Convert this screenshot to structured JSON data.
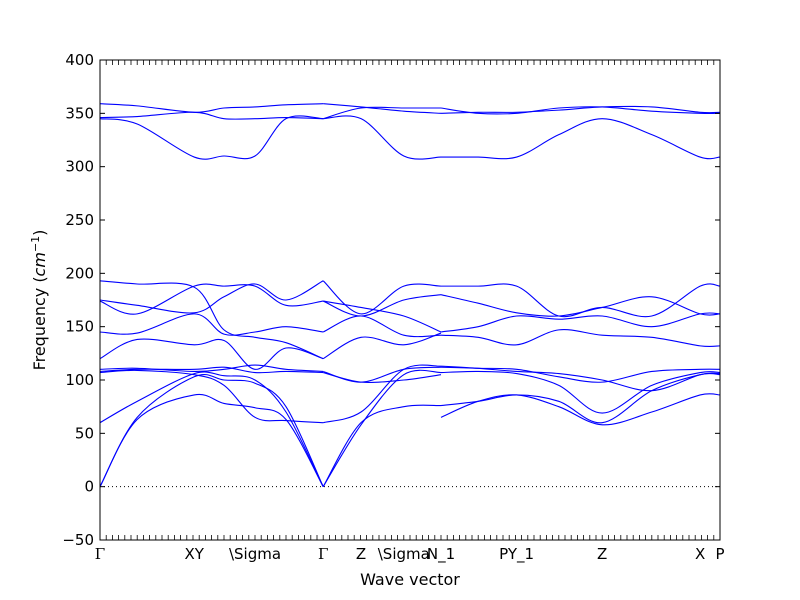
{
  "chart_data": {
    "type": "line",
    "xlabel": "Wave vector",
    "ylabel": "Frequency (",
    "ylabel_unit": "cm",
    "ylabel_exp": "−1",
    "ylabel_close": ")",
    "ylim": [
      -50,
      400
    ],
    "yticks": [
      -50,
      0,
      50,
      100,
      150,
      200,
      250,
      300,
      350,
      400
    ],
    "xlim": [
      0,
      1
    ],
    "kpoints": [
      {
        "label": "Γ",
        "x": 0.0,
        "serif": true
      },
      {
        "label": "XY",
        "x": 0.152
      },
      {
        "label": "\\Sigma",
        "x": 0.25
      },
      {
        "label": "Γ",
        "x": 0.36,
        "serif": true
      },
      {
        "label": "Z",
        "x": 0.421
      },
      {
        "label": "\\Sigma",
        "x": 0.49
      },
      {
        "label": "N_1",
        "x": 0.55
      },
      {
        "label": "PY_1",
        "x": 0.672
      },
      {
        "label": "Z",
        "x": 0.81
      },
      {
        "label": "X",
        "x": 0.968
      },
      {
        "label": "P",
        "x": 1.0
      }
    ],
    "zero_line": true,
    "series_color": "#0000ff",
    "series": [
      {
        "x": [
          0,
          0.06,
          0.152,
          0.2,
          0.25,
          0.3,
          0.36
        ],
        "y": [
          0,
          63,
          86,
          78,
          74,
          63,
          0
        ]
      },
      {
        "x": [
          0,
          0.06,
          0.152,
          0.2,
          0.25,
          0.3,
          0.36
        ],
        "y": [
          0,
          65,
          103,
          100,
          97,
          75,
          0
        ]
      },
      {
        "x": [
          0,
          0.06,
          0.152,
          0.2,
          0.25,
          0.3,
          0.36
        ],
        "y": [
          60,
          80,
          106,
          104,
          100,
          70,
          0
        ]
      },
      {
        "x": [
          0,
          0.06,
          0.152,
          0.2,
          0.25,
          0.3,
          0.36
        ],
        "y": [
          107,
          109,
          105,
          95,
          65,
          62,
          60
        ]
      },
      {
        "x": [
          0,
          0.06,
          0.152,
          0.2,
          0.25,
          0.3,
          0.36
        ],
        "y": [
          108,
          110,
          110,
          112,
          107,
          108,
          107
        ]
      },
      {
        "x": [
          0,
          0.06,
          0.152,
          0.2,
          0.25,
          0.3,
          0.36
        ],
        "y": [
          110,
          111,
          108,
          110,
          114,
          110,
          108
        ]
      },
      {
        "x": [
          0,
          0.06,
          0.152,
          0.2,
          0.25,
          0.3,
          0.36
        ],
        "y": [
          120,
          138,
          133,
          137,
          110,
          130,
          120
        ]
      },
      {
        "x": [
          0,
          0.06,
          0.152,
          0.2,
          0.25,
          0.3,
          0.36
        ],
        "y": [
          145,
          144,
          162,
          143,
          145,
          150,
          145
        ]
      },
      {
        "x": [
          0,
          0.06,
          0.152,
          0.2,
          0.25,
          0.3,
          0.36
        ],
        "y": [
          174,
          162,
          188,
          188,
          188,
          170,
          174
        ]
      },
      {
        "x": [
          0,
          0.06,
          0.152,
          0.2,
          0.25,
          0.3,
          0.36
        ],
        "y": [
          193,
          190,
          187,
          147,
          140,
          135,
          120
        ]
      },
      {
        "x": [
          0,
          0.06,
          0.152,
          0.2,
          0.25,
          0.3,
          0.36
        ],
        "y": [
          175,
          170,
          163,
          178,
          190,
          175,
          193
        ]
      },
      {
        "x": [
          0,
          0.06,
          0.152,
          0.2,
          0.25,
          0.3,
          0.36
        ],
        "y": [
          345,
          340,
          309,
          310,
          310,
          345,
          345
        ]
      },
      {
        "x": [
          0,
          0.06,
          0.152,
          0.2,
          0.25,
          0.3,
          0.36
        ],
        "y": [
          346,
          347,
          351,
          345,
          345,
          346,
          345
        ]
      },
      {
        "x": [
          0,
          0.06,
          0.152,
          0.2,
          0.25,
          0.3,
          0.36
        ],
        "y": [
          359,
          357,
          351,
          355,
          356,
          358,
          359
        ]
      },
      {
        "x": [
          0.36,
          0.421,
          0.49,
          0.55
        ],
        "y": [
          0,
          60,
          75,
          76
        ]
      },
      {
        "x": [
          0.36,
          0.421,
          0.49,
          0.55
        ],
        "y": [
          0,
          58,
          105,
          107
        ]
      },
      {
        "x": [
          0.36,
          0.421,
          0.49,
          0.55
        ],
        "y": [
          60,
          70,
          110,
          113
        ]
      },
      {
        "x": [
          0.36,
          0.421,
          0.49,
          0.55
        ],
        "y": [
          107,
          98,
          100,
          105
        ]
      },
      {
        "x": [
          0.36,
          0.421,
          0.49,
          0.55
        ],
        "y": [
          108,
          98,
          110,
          112
        ]
      },
      {
        "x": [
          0.36,
          0.421,
          0.49,
          0.55
        ],
        "y": [
          120,
          140,
          133,
          144
        ]
      },
      {
        "x": [
          0.36,
          0.421,
          0.49,
          0.55
        ],
        "y": [
          145,
          160,
          142,
          142
        ]
      },
      {
        "x": [
          0.36,
          0.421,
          0.49,
          0.55
        ],
        "y": [
          174,
          168,
          160,
          145
        ]
      },
      {
        "x": [
          0.36,
          0.421,
          0.49,
          0.55
        ],
        "y": [
          174,
          160,
          175,
          180
        ]
      },
      {
        "x": [
          0.36,
          0.421,
          0.49,
          0.55
        ],
        "y": [
          193,
          162,
          188,
          188
        ]
      },
      {
        "x": [
          0.36,
          0.421,
          0.49,
          0.55
        ],
        "y": [
          345,
          345,
          310,
          309
        ]
      },
      {
        "x": [
          0.36,
          0.421,
          0.49,
          0.55
        ],
        "y": [
          345,
          355,
          355,
          355
        ]
      },
      {
        "x": [
          0.36,
          0.421,
          0.49,
          0.55
        ],
        "y": [
          359,
          356,
          352,
          350
        ]
      },
      {
        "x": [
          0.55,
          0.61,
          0.672,
          0.74,
          0.81,
          0.89,
          0.968,
          1.0
        ],
        "y": [
          65,
          80,
          86,
          75,
          58,
          70,
          86,
          86
        ]
      },
      {
        "x": [
          0.55,
          0.61,
          0.672,
          0.74,
          0.81,
          0.89,
          0.968,
          1.0
        ],
        "y": [
          76,
          80,
          86,
          80,
          60,
          90,
          105,
          105
        ]
      },
      {
        "x": [
          0.55,
          0.61,
          0.672,
          0.74,
          0.81,
          0.89,
          0.968,
          1.0
        ],
        "y": [
          107,
          108,
          106,
          95,
          69,
          95,
          107,
          107
        ]
      },
      {
        "x": [
          0.55,
          0.61,
          0.672,
          0.74,
          0.81,
          0.89,
          0.968,
          1.0
        ],
        "y": [
          112,
          111,
          110,
          103,
          98,
          108,
          110,
          110
        ]
      },
      {
        "x": [
          0.55,
          0.61,
          0.672,
          0.74,
          0.81,
          0.89,
          0.968,
          1.0
        ],
        "y": [
          113,
          111,
          108,
          106,
          100,
          90,
          105,
          106
        ]
      },
      {
        "x": [
          0.55,
          0.61,
          0.672,
          0.74,
          0.81,
          0.89,
          0.968,
          1.0
        ],
        "y": [
          142,
          140,
          133,
          147,
          142,
          140,
          132,
          132
        ]
      },
      {
        "x": [
          0.55,
          0.61,
          0.672,
          0.74,
          0.81,
          0.89,
          0.968,
          1.0
        ],
        "y": [
          145,
          150,
          160,
          157,
          160,
          150,
          162,
          162
        ]
      },
      {
        "x": [
          0.55,
          0.61,
          0.672,
          0.74,
          0.81,
          0.89,
          0.968,
          1.0
        ],
        "y": [
          180,
          172,
          163,
          160,
          168,
          178,
          162,
          162
        ]
      },
      {
        "x": [
          0.55,
          0.61,
          0.672,
          0.74,
          0.81,
          0.89,
          0.968,
          1.0
        ],
        "y": [
          188,
          188,
          188,
          160,
          168,
          160,
          188,
          188
        ]
      },
      {
        "x": [
          0.55,
          0.61,
          0.672,
          0.74,
          0.81,
          0.89,
          0.968,
          1.0
        ],
        "y": [
          309,
          309,
          309,
          330,
          345,
          330,
          309,
          309
        ]
      },
      {
        "x": [
          0.55,
          0.61,
          0.672,
          0.74,
          0.81,
          0.89,
          0.968,
          1.0
        ],
        "y": [
          355,
          350,
          350,
          355,
          356,
          352,
          350,
          350
        ]
      },
      {
        "x": [
          0.55,
          0.61,
          0.672,
          0.74,
          0.81,
          0.89,
          0.968,
          1.0
        ],
        "y": [
          350,
          351,
          351,
          353,
          356,
          356,
          351,
          351
        ]
      }
    ]
  }
}
